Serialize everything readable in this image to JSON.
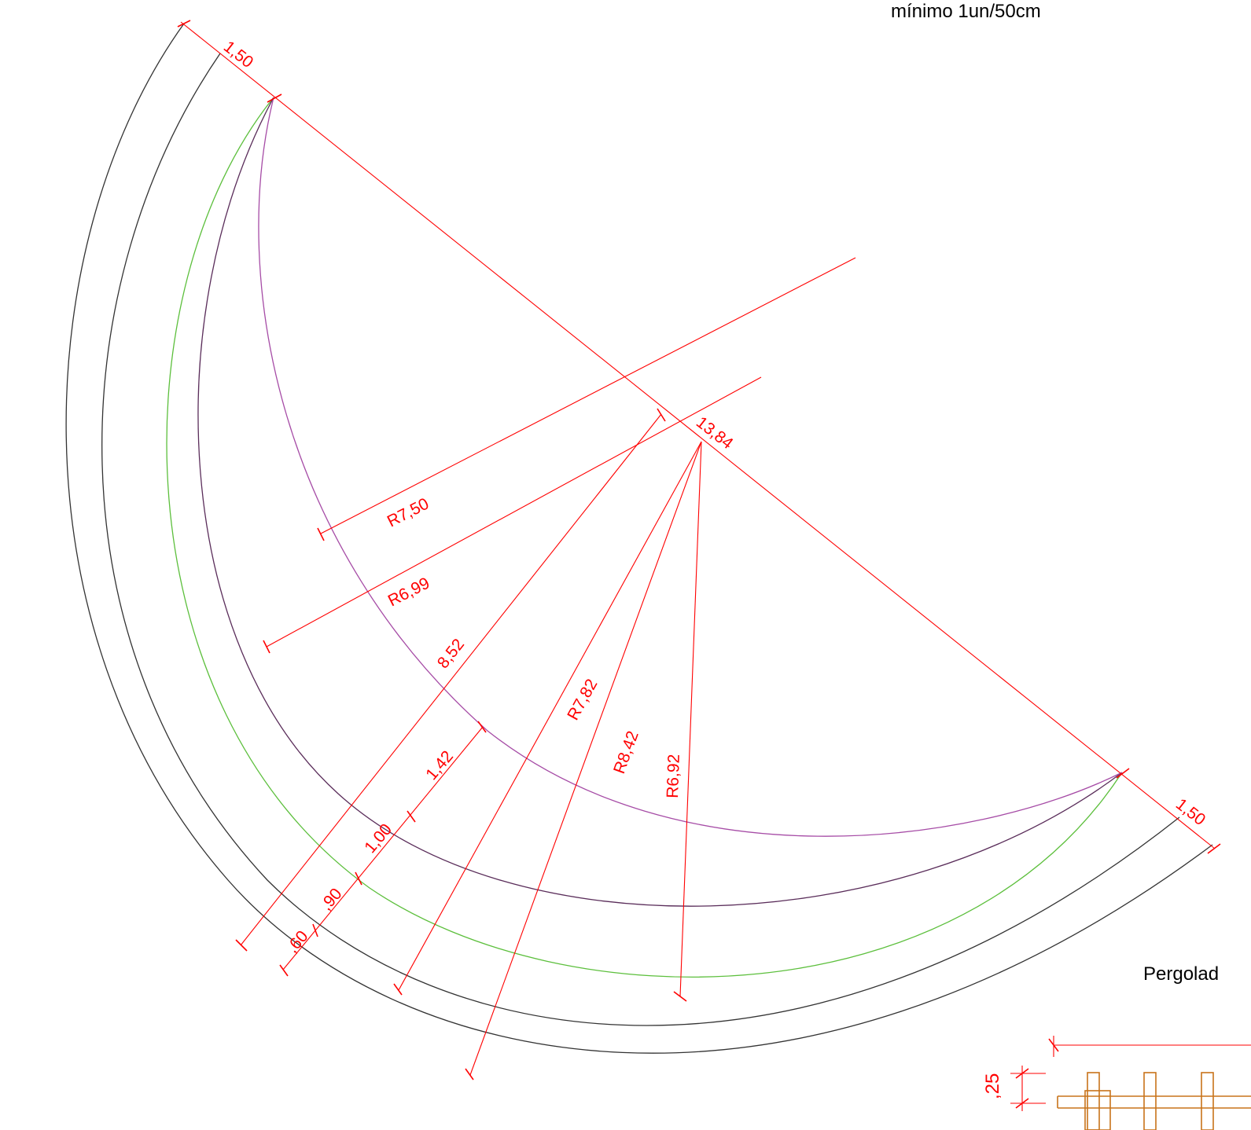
{
  "colors": {
    "outline": "#333333",
    "dimension": "#ff0000",
    "inner_arc": "#a64ca6",
    "mid_arc": "#5a2d5a",
    "green_arc": "#5cbf3c",
    "wood": "#c8731a",
    "background": "#ffffff"
  },
  "notes": {
    "top_note": "mínimo 1un/50cm",
    "pergola_label": "Pergolad"
  },
  "dimensions": {
    "width_top": "1,50",
    "width_bottom": "1,50",
    "chord": "13,84",
    "r_750": "R7,50",
    "r_699": "R6,99",
    "d_852": "8,52",
    "r_782": "R7,82",
    "r_842": "R8,42",
    "r_692": "R6,92",
    "d_142": "1,42",
    "d_100": "1,00",
    "d_090": ",90",
    "d_060": ",60",
    "d_025": ",25"
  }
}
